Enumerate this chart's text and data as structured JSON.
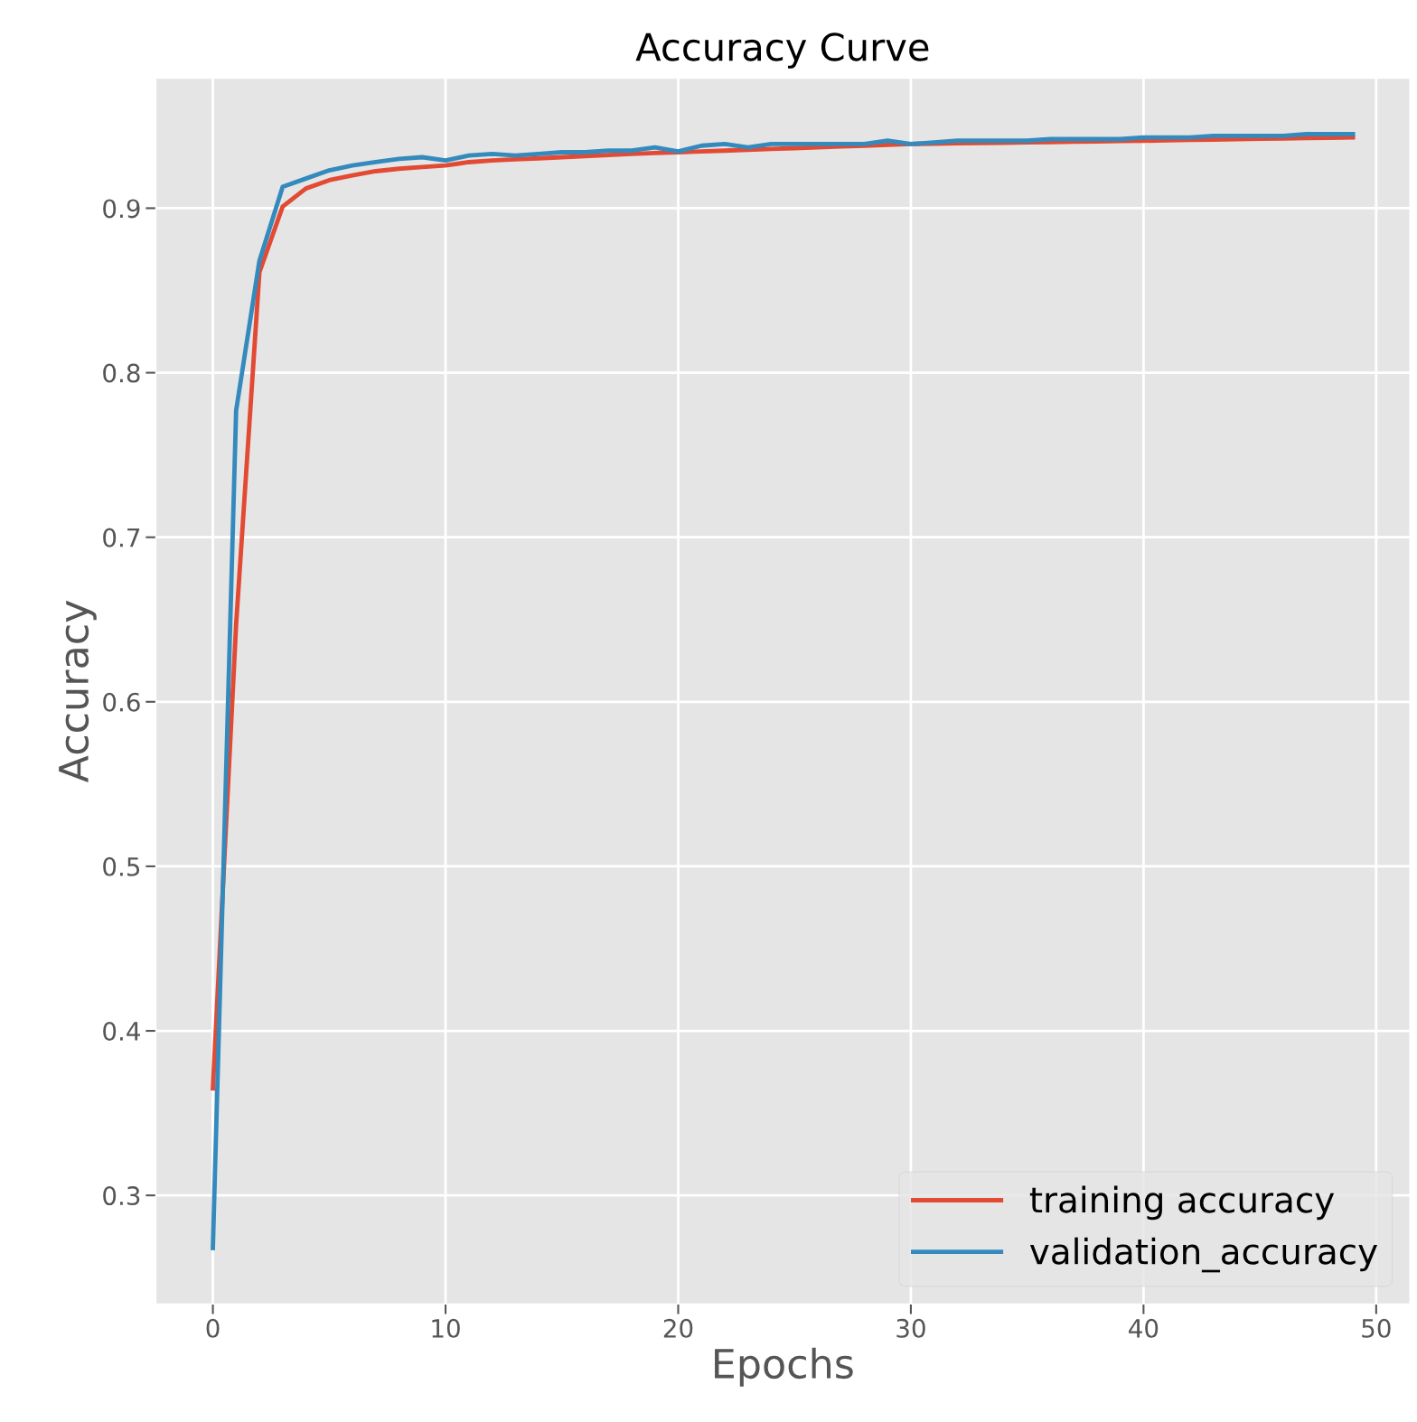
{
  "chart_data": {
    "type": "line",
    "title": "Accuracy Curve",
    "xlabel": "Epochs",
    "ylabel": "Accuracy",
    "x": [
      0,
      1,
      2,
      3,
      4,
      5,
      6,
      7,
      8,
      9,
      10,
      11,
      12,
      13,
      14,
      15,
      16,
      17,
      18,
      19,
      20,
      21,
      22,
      23,
      24,
      25,
      26,
      27,
      28,
      29,
      30,
      31,
      32,
      33,
      34,
      35,
      36,
      37,
      38,
      39,
      40,
      41,
      42,
      43,
      44,
      45,
      46,
      47,
      48,
      49
    ],
    "series": [
      {
        "name": "training accuracy",
        "color": "#e24a33",
        "values": [
          0.365,
          0.647,
          0.861,
          0.901,
          0.912,
          0.917,
          0.92,
          0.9225,
          0.924,
          0.925,
          0.926,
          0.928,
          0.929,
          0.9297,
          0.9303,
          0.931,
          0.9317,
          0.9323,
          0.933,
          0.9335,
          0.934,
          0.9345,
          0.935,
          0.9355,
          0.936,
          0.9365,
          0.937,
          0.9375,
          0.938,
          0.9385,
          0.939,
          0.9392,
          0.9394,
          0.9396,
          0.9398,
          0.94,
          0.9402,
          0.9404,
          0.9406,
          0.9408,
          0.941,
          0.9412,
          0.9415,
          0.9417,
          0.942,
          0.9422,
          0.9424,
          0.9426,
          0.9428,
          0.943
        ]
      },
      {
        "name": "validation_accuracy",
        "color": "#348abd",
        "values": [
          0.268,
          0.777,
          0.868,
          0.913,
          0.918,
          0.923,
          0.926,
          0.928,
          0.93,
          0.931,
          0.929,
          0.932,
          0.933,
          0.932,
          0.933,
          0.934,
          0.934,
          0.935,
          0.935,
          0.937,
          0.9345,
          0.938,
          0.939,
          0.937,
          0.939,
          0.939,
          0.939,
          0.939,
          0.939,
          0.941,
          0.939,
          0.94,
          0.941,
          0.941,
          0.941,
          0.941,
          0.942,
          0.942,
          0.942,
          0.942,
          0.943,
          0.943,
          0.943,
          0.944,
          0.944,
          0.944,
          0.944,
          0.945,
          0.945,
          0.945
        ]
      }
    ],
    "xlim": [
      -2.45,
      51.45
    ],
    "ylim": [
      0.234,
      0.979
    ],
    "xticks": [
      0,
      10,
      20,
      30,
      40,
      50
    ],
    "yticks": [
      0.3,
      0.4,
      0.5,
      0.6,
      0.7,
      0.8,
      0.9
    ],
    "grid": true,
    "legend": "lower right",
    "line_style": "solid",
    "marker": "none"
  }
}
